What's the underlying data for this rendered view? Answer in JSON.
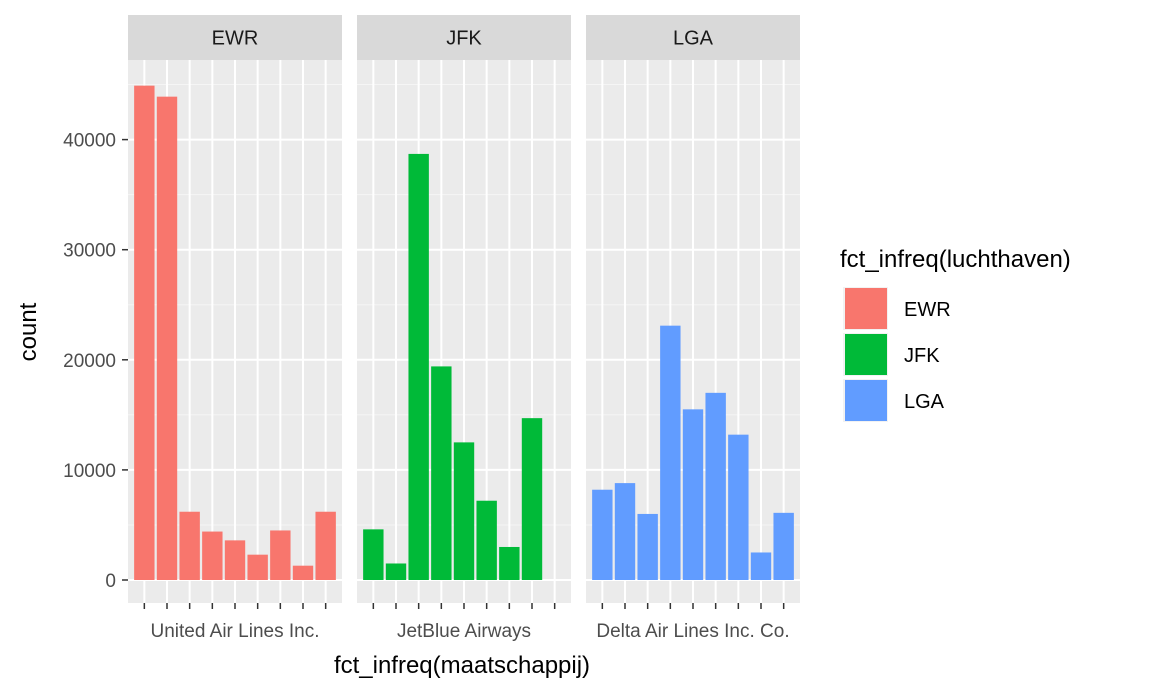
{
  "chart_data": {
    "type": "bar",
    "xlabel": "fct_infreq(maatschappij)",
    "ylabel": "count",
    "ylim": [
      0,
      45000
    ],
    "yticks": [
      0,
      10000,
      20000,
      30000,
      40000
    ],
    "ytick_labels": [
      "0",
      "10000",
      "20000",
      "30000",
      "40000"
    ],
    "legend": {
      "title": "fct_infreq(luchthaven)",
      "entries": [
        "EWR",
        "JFK",
        "LGA"
      ]
    },
    "colors": {
      "EWR": "#F8766D",
      "JFK": "#00BA38",
      "LGA": "#619CFF"
    },
    "panels": [
      {
        "name": "EWR",
        "values": [
          44900,
          43900,
          6200,
          4400,
          3600,
          2300,
          4500,
          1300,
          6200
        ],
        "xtick_text": "United Air Lines Inc."
      },
      {
        "name": "JFK",
        "values": [
          4600,
          1500,
          38700,
          19400,
          12500,
          7200,
          3000,
          14700
        ],
        "xtick_text": "JetBlue Airways"
      },
      {
        "name": "LGA",
        "values": [
          8200,
          8800,
          6000,
          23100,
          15500,
          17000,
          13200,
          2500,
          6100
        ],
        "xtick_text": "Delta Air Lines Inc. Co."
      }
    ]
  }
}
